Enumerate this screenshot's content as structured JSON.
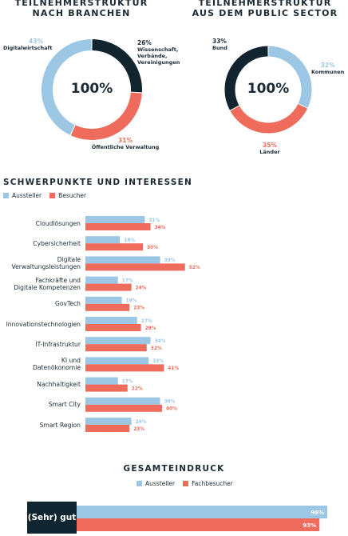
{
  "colors": {
    "aussteller": "#9cc7e4",
    "besucher": "#ef6c5d",
    "dark": "#12252e"
  },
  "donut_left": {
    "title_line1": "TEILNEHMERSTRUKTUR",
    "title_line2": "NACH BRANCHEN",
    "center": "100%",
    "labels": [
      {
        "pct": "43%",
        "text": "Digitalwirtschaft"
      },
      {
        "pct": "26%",
        "text": "Wissenschaft,\nVerbände,\nVereinigungen"
      },
      {
        "pct": "31%",
        "text": "Öffentliche Verwaltung"
      }
    ]
  },
  "donut_right": {
    "title_line1": "TEILNEHMERSTRUKTUR",
    "title_line2": "AUS DEM PUBLIC SECTOR",
    "center": "100%",
    "labels": [
      {
        "pct": "33%",
        "text": "Bund"
      },
      {
        "pct": "32%",
        "text": "Kommunen"
      },
      {
        "pct": "35%",
        "text": "Länder"
      }
    ]
  },
  "interests": {
    "title": "SCHWERPUNKTE UND INTERESSEN",
    "legend_a": "Aussteller",
    "legend_b": "Besucher"
  },
  "overall": {
    "title": "GESAMTEINDRUCK",
    "legend_a": "Aussteller",
    "legend_b": "Fachbesucher",
    "category": "(Sehr) gut"
  },
  "chart_data": [
    {
      "type": "pie",
      "title": "TEILNEHMERSTRUKTUR NACH BRANCHEN",
      "categories": [
        "Wissenschaft, Verbände, Vereinigungen",
        "Öffentliche Verwaltung",
        "Digitalwirtschaft"
      ],
      "values": [
        26,
        31,
        43
      ],
      "colors": [
        "#12252e",
        "#ef6c5d",
        "#9cc7e4"
      ]
    },
    {
      "type": "pie",
      "title": "TEILNEHMERSTRUKTUR AUS DEM PUBLIC SECTOR",
      "categories": [
        "Kommunen",
        "Länder",
        "Bund"
      ],
      "values": [
        32,
        35,
        33
      ],
      "colors": [
        "#9cc7e4",
        "#ef6c5d",
        "#12252e"
      ]
    },
    {
      "type": "bar",
      "title": "SCHWERPUNKTE UND INTERESSEN",
      "categories": [
        "Cloudlösungen",
        "Cybersicherheit",
        "Digitale\nVerwaltungsleistungen",
        "Fachkräfte und\nDigitale Kompetenzen",
        "GovTech",
        "Innovationstechnologien",
        "IT-Infrastruktur",
        "KI und\nDatenökonomie",
        "Nachhaltigkeit",
        "Smart City",
        "Smart Region"
      ],
      "series": [
        {
          "name": "Aussteller",
          "values": [
            31,
            18,
            39,
            17,
            19,
            27,
            34,
            33,
            17,
            39,
            24
          ],
          "labels": [
            "31%",
            "18%",
            "39%",
            "17%",
            "19%",
            "27%",
            "34%",
            "33%",
            "17%",
            "39%",
            "24%"
          ]
        },
        {
          "name": "Besucher",
          "values": [
            34,
            30,
            52,
            24,
            23,
            29,
            32,
            41,
            22,
            40,
            23
          ],
          "labels": [
            "34%",
            "30%",
            "52%",
            "24%",
            "23%",
            "29%",
            "32%",
            "41%",
            "22%",
            "40%",
            "23%"
          ]
        }
      ]
    },
    {
      "type": "bar",
      "title": "GESAMTEINDRUCK",
      "categories": [
        "(Sehr) gut"
      ],
      "series": [
        {
          "name": "Aussteller",
          "values": [
            96
          ],
          "labels": [
            "96%"
          ]
        },
        {
          "name": "Fachbesucher",
          "values": [
            93
          ],
          "labels": [
            "93%"
          ]
        }
      ]
    }
  ]
}
